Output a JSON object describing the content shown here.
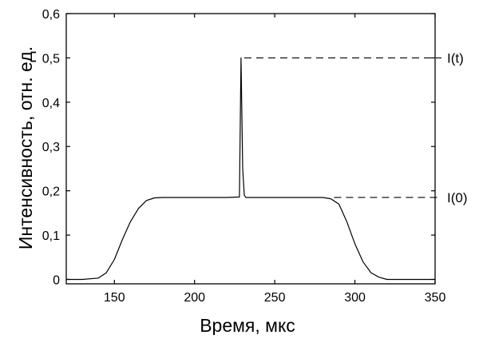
{
  "chart_data": {
    "type": "line",
    "title": "",
    "xlabel": "Время, мкс",
    "ylabel": "Интенсивность, отн. ед.",
    "xlim": [
      120,
      350
    ],
    "ylim": [
      -0.01,
      0.6
    ],
    "x_ticks": [
      150,
      200,
      250,
      300,
      350
    ],
    "x_tick_labels": [
      "150",
      "200",
      "250",
      "300",
      "350"
    ],
    "y_ticks": [
      0,
      0.1,
      0.2,
      0.3,
      0.4,
      0.5,
      0.6
    ],
    "y_tick_labels": [
      "0",
      "0,1",
      "0,2",
      "0,3",
      "0,4",
      "0,5",
      "0,6"
    ],
    "grid": false,
    "legend": "none",
    "line_color": "#000000",
    "series": [
      {
        "x": [
          120,
          130,
          140,
          145,
          150,
          155,
          160,
          165,
          170,
          175,
          180,
          190,
          200,
          210,
          220,
          228,
          229,
          230,
          231,
          232,
          240,
          250,
          260,
          270,
          280,
          285,
          290,
          295,
          300,
          305,
          310,
          315,
          320,
          330,
          340,
          350
        ],
        "y": [
          0.0,
          0.0,
          0.003,
          0.015,
          0.045,
          0.09,
          0.13,
          0.16,
          0.178,
          0.184,
          0.185,
          0.185,
          0.185,
          0.185,
          0.185,
          0.186,
          0.5,
          0.25,
          0.19,
          0.185,
          0.185,
          0.185,
          0.185,
          0.185,
          0.185,
          0.182,
          0.17,
          0.13,
          0.08,
          0.04,
          0.015,
          0.005,
          0.0,
          0.0,
          0.0,
          0.0
        ]
      }
    ],
    "annotations": [
      {
        "label": "I(t)",
        "y": 0.5,
        "x_start": 231
      },
      {
        "label": "I(0)",
        "y": 0.185,
        "x_start": 287
      }
    ]
  }
}
